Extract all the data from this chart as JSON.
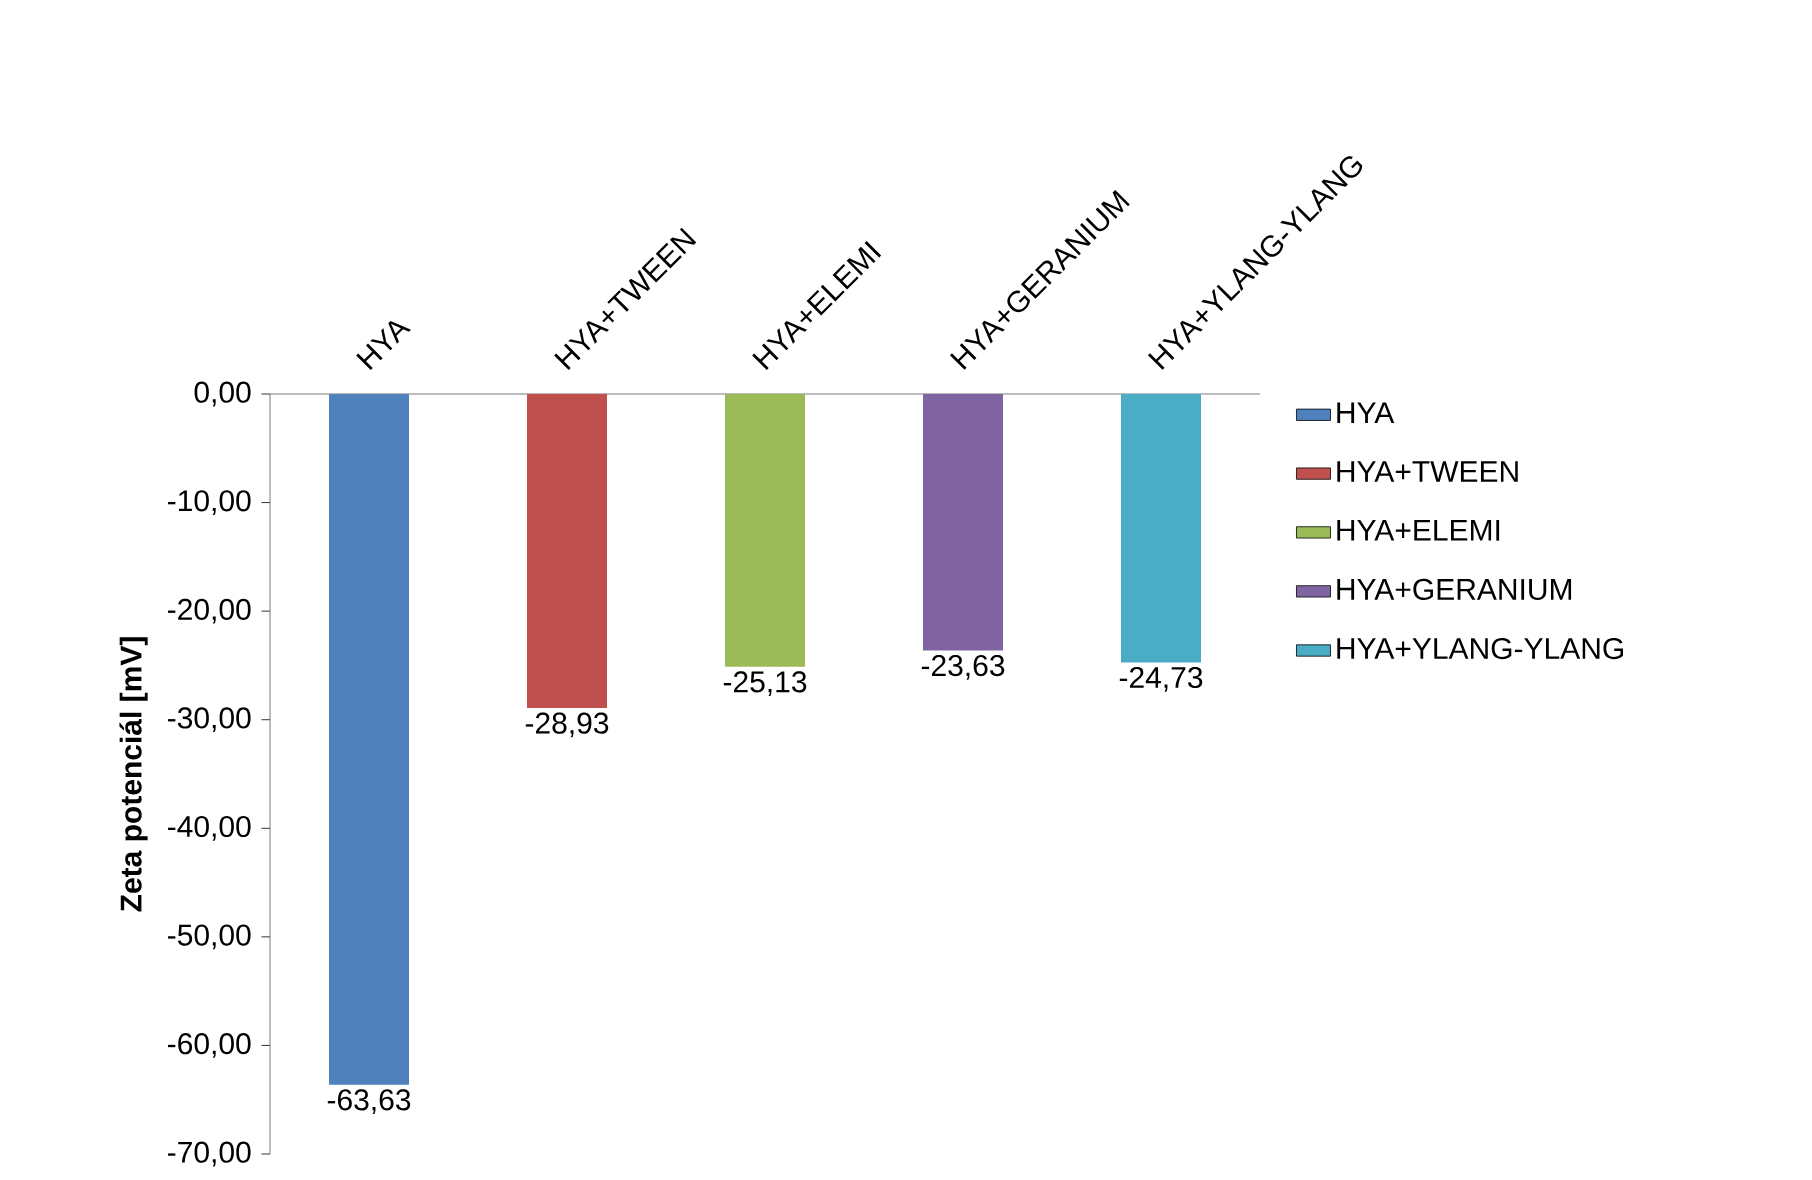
{
  "chart_data": {
    "type": "bar",
    "ylabel": "Zeta potenciál [mV]",
    "categories": [
      "HYA",
      "HYA+TWEEN",
      "HYA+ELEMI",
      "HYA+GERANIUM",
      "HYA+YLANG-YLANG"
    ],
    "series": [
      {
        "name": "HYA",
        "color": "#4f81bd",
        "values": [
          -63.63,
          null,
          null,
          null,
          null
        ],
        "value_labels": [
          "-63,63",
          null,
          null,
          null,
          null
        ]
      },
      {
        "name": "HYA+TWEEN",
        "color": "#c0504d",
        "values": [
          null,
          -28.93,
          null,
          null,
          null
        ],
        "value_labels": [
          null,
          "-28,93",
          null,
          null,
          null
        ]
      },
      {
        "name": "HYA+ELEMI",
        "color": "#9bbb59",
        "values": [
          null,
          null,
          -25.13,
          null,
          null
        ],
        "value_labels": [
          null,
          null,
          "-25,13",
          null,
          null
        ]
      },
      {
        "name": "HYA+GERANIUM",
        "color": "#8064a2",
        "values": [
          null,
          null,
          null,
          -23.63,
          null
        ],
        "value_labels": [
          null,
          null,
          null,
          "-23,63",
          null
        ]
      },
      {
        "name": "HYA+YLANG-YLANG",
        "color": "#4bacc6",
        "values": [
          null,
          null,
          null,
          null,
          -24.73
        ],
        "value_labels": [
          null,
          null,
          null,
          null,
          "-24,73"
        ]
      }
    ],
    "ylim": [
      -70,
      0
    ],
    "yticks": [
      {
        "value": -70,
        "label": "-70,00"
      },
      {
        "value": -60,
        "label": "-60,00"
      },
      {
        "value": -50,
        "label": "-50,00"
      },
      {
        "value": -40,
        "label": "-40,00"
      },
      {
        "value": -30,
        "label": "-30,00"
      },
      {
        "value": -20,
        "label": "-20,00"
      },
      {
        "value": -10,
        "label": "-10,00"
      },
      {
        "value": 0,
        "label": "0,00"
      }
    ],
    "legend": "right",
    "grid": false
  }
}
